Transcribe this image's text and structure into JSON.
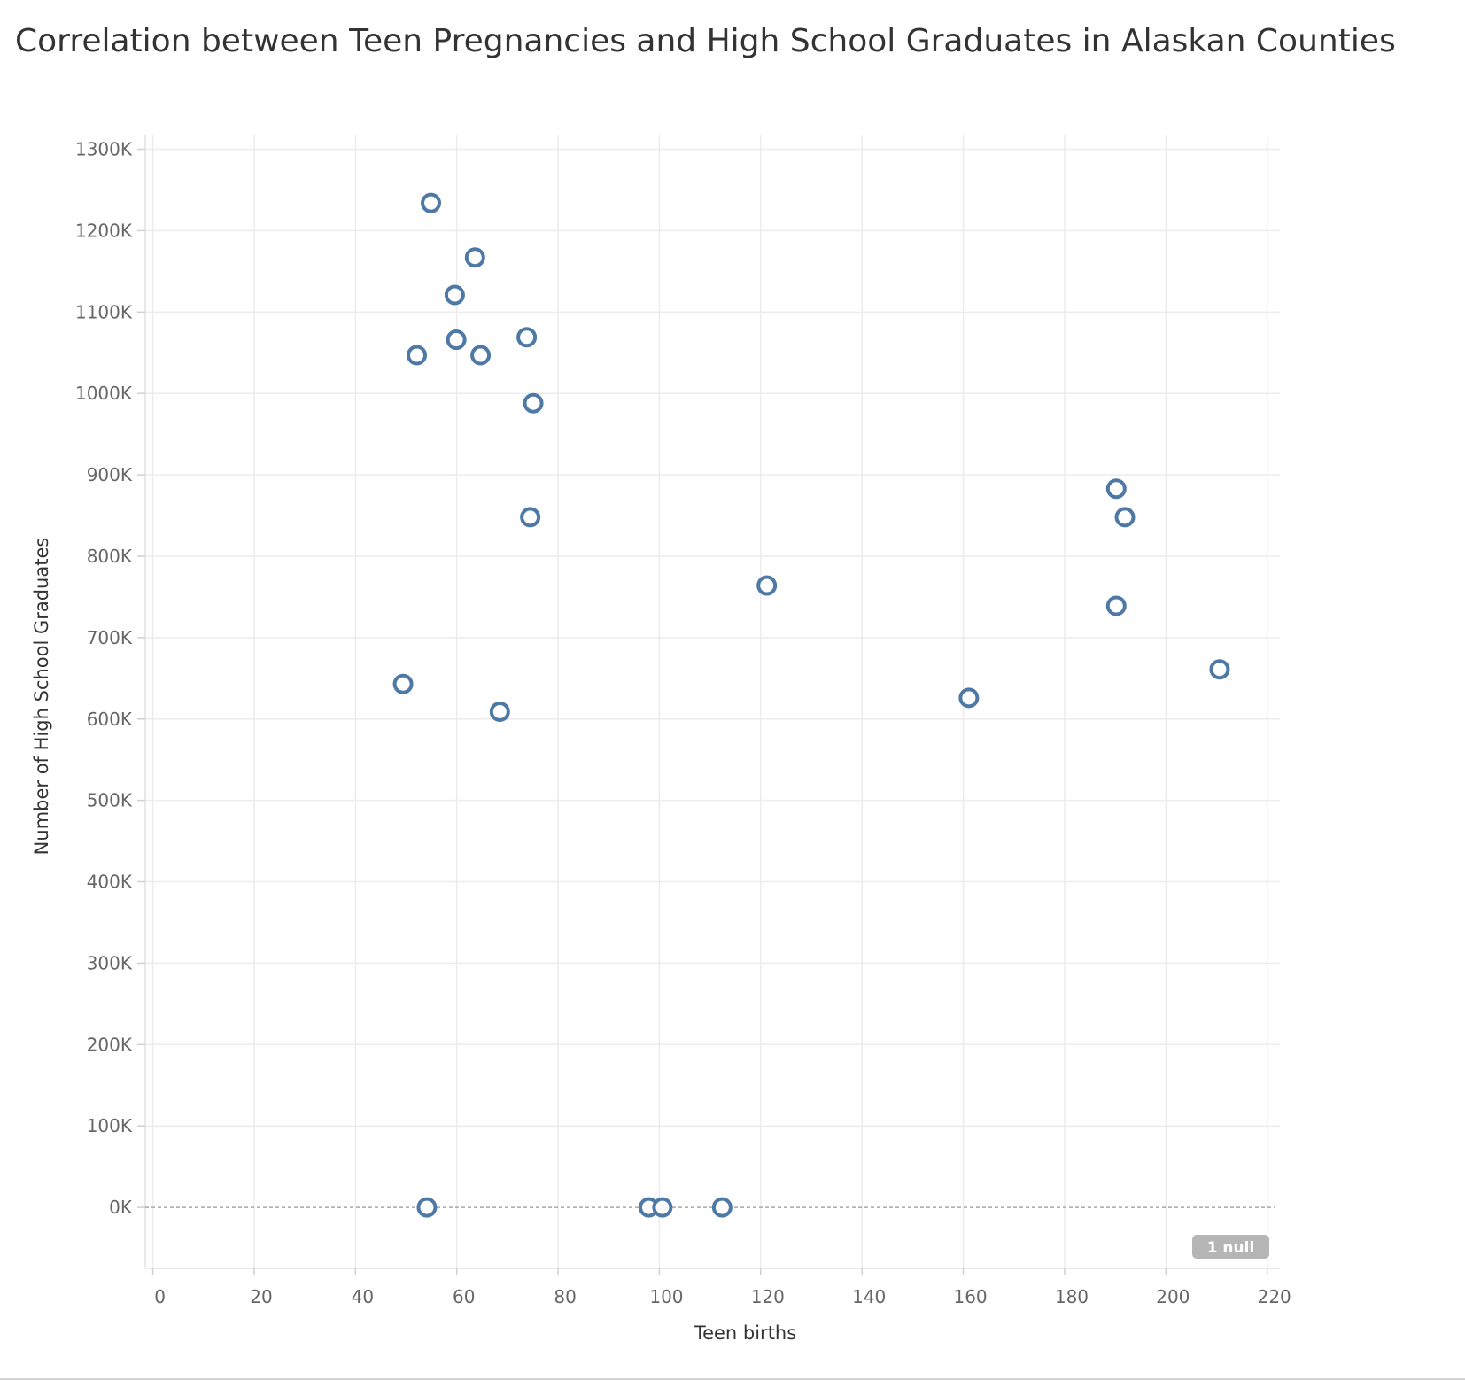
{
  "chart_data": {
    "type": "scatter",
    "title": "Correlation between Teen Pregnancies and High School Graduates in Alaskan Counties",
    "xlabel": "Teen births",
    "ylabel": "Number of High School Graduates",
    "xlim": [
      -1.5,
      222.5
    ],
    "ylim": [
      -75000,
      1318000
    ],
    "x_ticks": [
      0,
      20,
      40,
      60,
      80,
      100,
      120,
      140,
      160,
      180,
      200,
      220
    ],
    "x_tick_labels": [
      "0",
      "20",
      "40",
      "60",
      "80",
      "100",
      "120",
      "140",
      "160",
      "180",
      "200",
      "220"
    ],
    "y_ticks": [
      0,
      100000,
      200000,
      300000,
      400000,
      500000,
      600000,
      700000,
      800000,
      900000,
      1000000,
      1100000,
      1200000,
      1300000
    ],
    "y_tick_labels": [
      "0K",
      "100K",
      "200K",
      "300K",
      "400K",
      "500K",
      "600K",
      "700K",
      "800K",
      "900K",
      "1000K",
      "1100K",
      "1200K",
      "1300K"
    ],
    "grid": true,
    "zero_line": true,
    "marker": "open-circle",
    "marker_color": "#4e79a7",
    "null_indicator": "1 null",
    "points": [
      {
        "x": 54.9,
        "y": 1234000
      },
      {
        "x": 63.6,
        "y": 1167000
      },
      {
        "x": 59.6,
        "y": 1121000
      },
      {
        "x": 52.1,
        "y": 1047000
      },
      {
        "x": 59.9,
        "y": 1066000
      },
      {
        "x": 64.7,
        "y": 1047000
      },
      {
        "x": 73.8,
        "y": 1069000
      },
      {
        "x": 75.1,
        "y": 988000
      },
      {
        "x": 74.5,
        "y": 848000
      },
      {
        "x": 121.2,
        "y": 764000
      },
      {
        "x": 49.4,
        "y": 643000
      },
      {
        "x": 68.5,
        "y": 609000
      },
      {
        "x": 161.1,
        "y": 626000
      },
      {
        "x": 190.2,
        "y": 883000
      },
      {
        "x": 191.9,
        "y": 848000
      },
      {
        "x": 190.2,
        "y": 739000
      },
      {
        "x": 210.6,
        "y": 661000
      },
      {
        "x": 54.1,
        "y": 0
      },
      {
        "x": 97.9,
        "y": 0
      },
      {
        "x": 100.6,
        "y": 0
      },
      {
        "x": 112.4,
        "y": 0
      }
    ]
  }
}
